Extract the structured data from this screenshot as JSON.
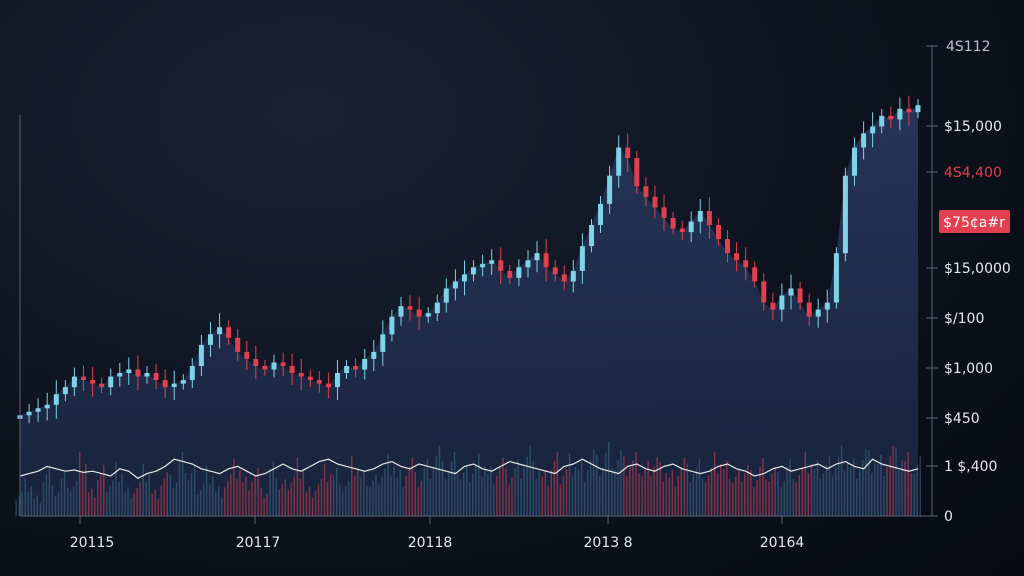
{
  "chart_data": {
    "type": "candlestick",
    "grid": false,
    "legend": "none",
    "colors": {
      "up": "#7fd3e6",
      "down": "#e0404f",
      "area_fill": "#1e2a45",
      "indicator_line": "#e8e8e8",
      "price_tag_bg": "#e0404f",
      "axis": "#5a6478",
      "label": "#e6e9f0",
      "label_red": "#e0404f"
    },
    "x_ticks": [
      "20115",
      "20117",
      "20118",
      "2013 8",
      "20164"
    ],
    "y_ticks": [
      {
        "label": "$15,000",
        "style": "normal"
      },
      {
        "label": "$15,0000",
        "style": "normal"
      },
      {
        "label": "$1,000",
        "style": "normal"
      },
      {
        "label": "$450",
        "style": "normal"
      },
      {
        "label": "1 $,400",
        "style": "normal"
      },
      {
        "label": "0",
        "style": "normal"
      }
    ],
    "price_labels": [
      {
        "label": "4S112",
        "style": "muted"
      },
      {
        "label": "4S4,400",
        "style": "red"
      },
      {
        "label": "$/100",
        "style": "normal"
      }
    ],
    "current_price_tag": "$75¢a#r",
    "price_series": [
      32,
      33,
      34,
      35,
      38,
      40,
      43,
      42,
      41,
      40,
      43,
      44,
      45,
      43,
      44,
      42,
      40,
      41,
      42,
      46,
      52,
      55,
      57,
      54,
      50,
      48,
      46,
      45,
      47,
      46,
      44,
      43,
      42,
      41,
      40,
      44,
      46,
      45,
      48,
      50,
      55,
      60,
      63,
      62,
      60,
      61,
      64,
      68,
      70,
      72,
      74,
      75,
      76,
      73,
      71,
      74,
      76,
      78,
      74,
      72,
      70,
      73,
      80,
      86,
      92,
      100,
      108,
      105,
      97,
      94,
      91,
      88,
      85,
      84,
      87,
      90,
      86,
      82,
      78,
      76,
      74,
      70,
      64,
      62,
      66,
      68,
      64,
      60,
      62,
      64,
      78,
      100,
      108,
      112,
      114,
      117,
      116,
      119,
      118,
      120
    ],
    "volume_series": [
      30,
      45,
      25,
      60,
      35,
      50,
      40,
      70,
      30,
      55,
      45,
      65,
      35,
      40,
      60,
      30,
      50,
      45,
      70,
      55,
      40,
      60,
      35,
      50,
      65,
      45,
      55,
      30,
      60,
      40,
      50,
      70,
      35,
      45,
      60,
      55,
      40,
      65,
      50,
      45,
      60,
      75,
      55,
      70,
      50,
      65,
      80,
      60,
      70,
      55,
      65,
      75,
      60,
      70,
      55,
      65,
      80,
      60,
      50,
      70,
      60,
      75,
      65,
      80,
      70,
      85,
      75,
      65,
      70,
      60,
      75,
      65,
      55,
      70,
      60,
      65,
      55,
      70,
      60,
      50,
      65,
      55,
      70,
      60,
      50,
      65,
      55,
      70,
      60,
      65,
      75,
      85,
      70,
      80,
      75,
      70,
      80,
      75,
      70,
      65
    ],
    "indicator_series": [
      20,
      22,
      24,
      28,
      26,
      24,
      25,
      23,
      24,
      22,
      20,
      26,
      24,
      18,
      22,
      24,
      28,
      34,
      32,
      30,
      26,
      24,
      22,
      26,
      28,
      24,
      20,
      22,
      26,
      30,
      26,
      24,
      28,
      32,
      34,
      30,
      28,
      26,
      24,
      26,
      30,
      32,
      28,
      26,
      30,
      28,
      26,
      24,
      22,
      28,
      30,
      26,
      24,
      28,
      32,
      30,
      28,
      26,
      24,
      22,
      28,
      30,
      34,
      30,
      26,
      24,
      22,
      28,
      30,
      26,
      24,
      28,
      30,
      26,
      24,
      22,
      24,
      28,
      30,
      26,
      24,
      20,
      22,
      26,
      28,
      24,
      26,
      28,
      30,
      26,
      30,
      32,
      28,
      26,
      34,
      30,
      28,
      26,
      24,
      26
    ]
  }
}
